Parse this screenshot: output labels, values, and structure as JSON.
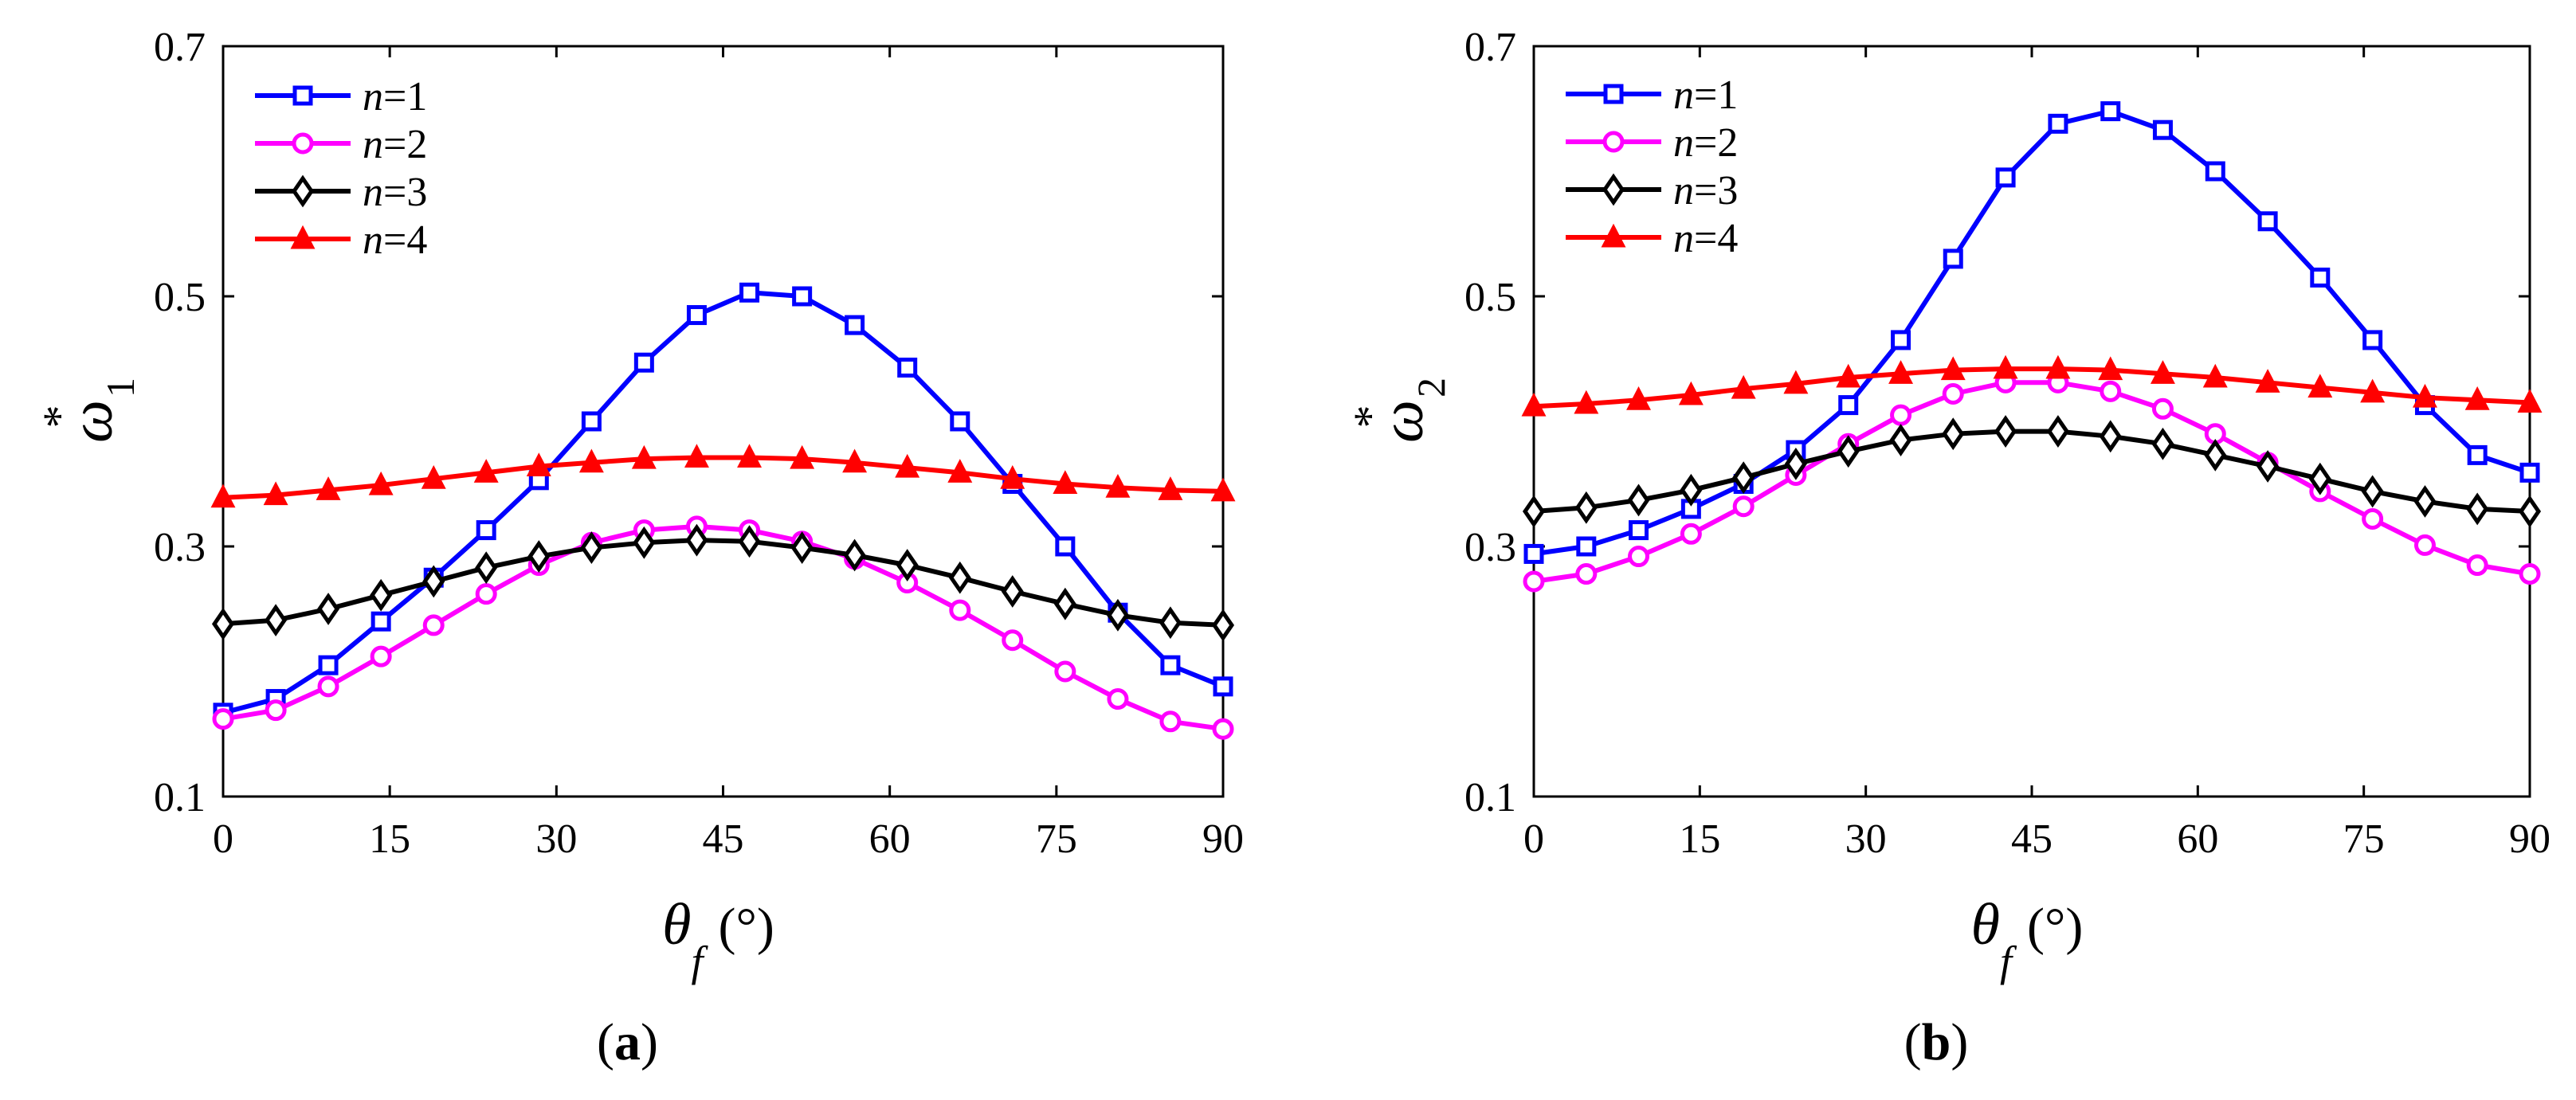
{
  "chart_data": [
    {
      "type": "line",
      "panel_label": "(a)",
      "panel_letter": "a",
      "ylabel": "ω",
      "ylabel_sup": "*",
      "ylabel_sub": "1",
      "xlabel": "θ",
      "xlabel_sub": "f",
      "xlabel_unit": "(°)",
      "xlim": [
        0,
        90
      ],
      "ylim": [
        0.1,
        0.7
      ],
      "xticks": [
        "0",
        "15",
        "30",
        "45",
        "60",
        "75",
        "90"
      ],
      "yticks": [
        "0.1",
        "0.3",
        "0.5",
        "0.7"
      ],
      "legend_position": "top-left",
      "x": [
        0,
        4.74,
        9.47,
        14.21,
        18.95,
        23.68,
        28.42,
        33.16,
        37.89,
        42.63,
        47.37,
        52.11,
        56.84,
        61.58,
        66.32,
        71.05,
        75.79,
        80.53,
        85.26,
        90
      ],
      "series": [
        {
          "name": "n=1",
          "name_italic": "n",
          "name_rest": "=1",
          "color": "#0000ff",
          "marker": "square",
          "values": [
            0.167,
            0.178,
            0.205,
            0.24,
            0.275,
            0.313,
            0.353,
            0.4,
            0.447,
            0.485,
            0.503,
            0.5,
            0.477,
            0.443,
            0.4,
            0.35,
            0.3,
            0.247,
            0.205,
            0.188
          ]
        },
        {
          "name": "n=2",
          "name_italic": "n",
          "name_rest": "=2",
          "color": "#ff00ff",
          "marker": "circle",
          "values": [
            0.162,
            0.169,
            0.188,
            0.212,
            0.237,
            0.262,
            0.285,
            0.303,
            0.313,
            0.316,
            0.313,
            0.304,
            0.29,
            0.271,
            0.249,
            0.225,
            0.2,
            0.178,
            0.16,
            0.154
          ]
        },
        {
          "name": "n=3",
          "name_italic": "n",
          "name_rest": "=3",
          "color": "#000000",
          "marker": "diamond",
          "values": [
            0.238,
            0.241,
            0.25,
            0.261,
            0.272,
            0.283,
            0.292,
            0.299,
            0.303,
            0.305,
            0.304,
            0.299,
            0.293,
            0.285,
            0.275,
            0.264,
            0.254,
            0.245,
            0.239,
            0.237
          ]
        },
        {
          "name": "n=4",
          "name_italic": "n",
          "name_rest": "=4",
          "color": "#ff0000",
          "marker": "triangle",
          "values": [
            0.339,
            0.341,
            0.345,
            0.349,
            0.354,
            0.359,
            0.364,
            0.367,
            0.37,
            0.371,
            0.371,
            0.37,
            0.367,
            0.363,
            0.359,
            0.354,
            0.35,
            0.347,
            0.345,
            0.344
          ]
        }
      ]
    },
    {
      "type": "line",
      "panel_label": "(b)",
      "panel_letter": "b",
      "ylabel": "ω",
      "ylabel_sup": "*",
      "ylabel_sub": "2",
      "xlabel": "θ",
      "xlabel_sub": "f",
      "xlabel_unit": "(°)",
      "xlim": [
        0,
        90
      ],
      "ylim": [
        0.1,
        0.7
      ],
      "xticks": [
        "0",
        "15",
        "30",
        "45",
        "60",
        "75",
        "90"
      ],
      "yticks": [
        "0.1",
        "0.3",
        "0.5",
        "0.7"
      ],
      "legend_position": "top-left",
      "x": [
        0,
        4.74,
        9.47,
        14.21,
        18.95,
        23.68,
        28.42,
        33.16,
        37.89,
        42.63,
        47.37,
        52.11,
        56.84,
        61.58,
        66.32,
        71.05,
        75.79,
        80.53,
        85.26,
        90
      ],
      "series": [
        {
          "name": "n=1",
          "name_italic": "n",
          "name_rest": "=1",
          "color": "#0000ff",
          "marker": "square",
          "values": [
            0.294,
            0.3,
            0.313,
            0.33,
            0.35,
            0.377,
            0.413,
            0.465,
            0.53,
            0.595,
            0.638,
            0.648,
            0.633,
            0.6,
            0.56,
            0.515,
            0.465,
            0.413,
            0.373,
            0.359
          ]
        },
        {
          "name": "n=2",
          "name_italic": "n",
          "name_rest": "=2",
          "color": "#ff00ff",
          "marker": "circle",
          "values": [
            0.272,
            0.278,
            0.292,
            0.31,
            0.332,
            0.357,
            0.382,
            0.405,
            0.422,
            0.431,
            0.431,
            0.424,
            0.41,
            0.39,
            0.367,
            0.344,
            0.322,
            0.301,
            0.285,
            0.278
          ]
        },
        {
          "name": "n=3",
          "name_italic": "n",
          "name_rest": "=3",
          "color": "#000000",
          "marker": "diamond",
          "values": [
            0.328,
            0.331,
            0.337,
            0.345,
            0.355,
            0.366,
            0.376,
            0.385,
            0.39,
            0.392,
            0.392,
            0.388,
            0.382,
            0.373,
            0.364,
            0.354,
            0.344,
            0.336,
            0.33,
            0.328
          ]
        },
        {
          "name": "n=4",
          "name_italic": "n",
          "name_rest": "=4",
          "color": "#ff0000",
          "marker": "triangle",
          "values": [
            0.412,
            0.414,
            0.417,
            0.421,
            0.426,
            0.43,
            0.435,
            0.438,
            0.441,
            0.442,
            0.442,
            0.441,
            0.438,
            0.435,
            0.431,
            0.427,
            0.423,
            0.419,
            0.417,
            0.415
          ]
        }
      ]
    }
  ]
}
